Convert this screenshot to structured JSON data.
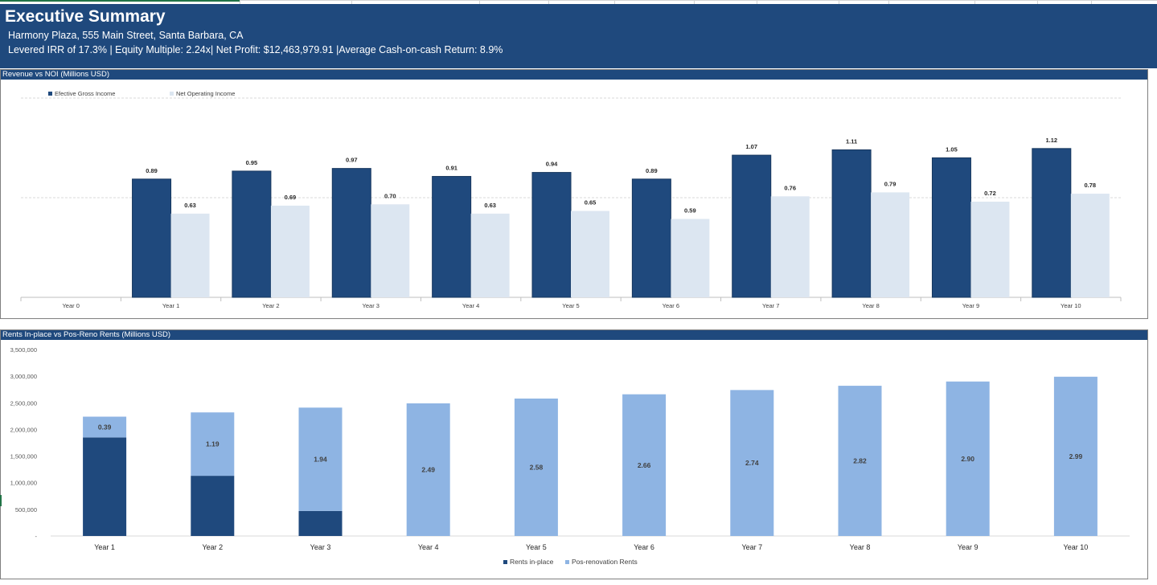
{
  "header": {
    "title": "Executive Summary",
    "property": "Harmony Plaza, 555 Main Street, Santa Barbara, CA",
    "metrics": "Levered IRR of 17.3% | Equity Multiple: 2.24x| Net Profit: $12,463,979.91 |Average Cash-on-cash Return: 8.9%"
  },
  "colors": {
    "header_bg": "#1f497d",
    "dark_blue": "#1f497d",
    "pale_blue": "#dce6f1",
    "light_blue": "#8eb4e3"
  },
  "chart_data": [
    {
      "type": "bar",
      "title": "Revenue vs NOI (Millions USD)",
      "categories": [
        "Year 0",
        "Year 1",
        "Year 2",
        "Year 3",
        "Year 4",
        "Year 5",
        "Year 6",
        "Year 7",
        "Year 8",
        "Year 9",
        "Year 10"
      ],
      "series": [
        {
          "name": "Efective Gross Income",
          "color": "#1f497d",
          "values": [
            null,
            0.89,
            0.95,
            0.97,
            0.91,
            0.94,
            0.89,
            1.07,
            1.11,
            1.05,
            1.12
          ]
        },
        {
          "name": "Net Operating Income",
          "color": "#dce6f1",
          "values": [
            null,
            0.63,
            0.69,
            0.7,
            0.63,
            0.65,
            0.59,
            0.76,
            0.79,
            0.72,
            0.78
          ]
        }
      ],
      "ylim": [
        0,
        1.5
      ],
      "grid": true,
      "legend": "top-left",
      "data_labels": true
    },
    {
      "type": "bar",
      "stacked": true,
      "title": "Rents In-place vs Pos-Reno Rents (Millions USD)",
      "categories": [
        "Year 1",
        "Year 2",
        "Year 3",
        "Year 4",
        "Year 5",
        "Year 6",
        "Year 7",
        "Year 8",
        "Year 9",
        "Year 10"
      ],
      "series": [
        {
          "name": "Rents in-place",
          "color": "#1f497d",
          "values": [
            1850000,
            1130000,
            470000,
            0,
            0,
            0,
            0,
            0,
            0,
            0
          ]
        },
        {
          "name": "Pos-renovation Rents",
          "color": "#8eb4e3",
          "values": [
            390000,
            1190000,
            1940000,
            2490000,
            2580000,
            2660000,
            2740000,
            2820000,
            2900000,
            2990000
          ]
        }
      ],
      "data_labels": [
        "0.39",
        "1.19",
        "1.94",
        "2.49",
        "2.58",
        "2.66",
        "2.74",
        "2.82",
        "2.90",
        "2.99"
      ],
      "ylim": [
        0,
        3500000
      ],
      "yticks": [
        "-",
        "500,000",
        "1,000,000",
        "1,500,000",
        "2,000,000",
        "2,500,000",
        "3,000,000",
        "3,500,000"
      ],
      "grid": false,
      "legend": "bottom"
    }
  ]
}
